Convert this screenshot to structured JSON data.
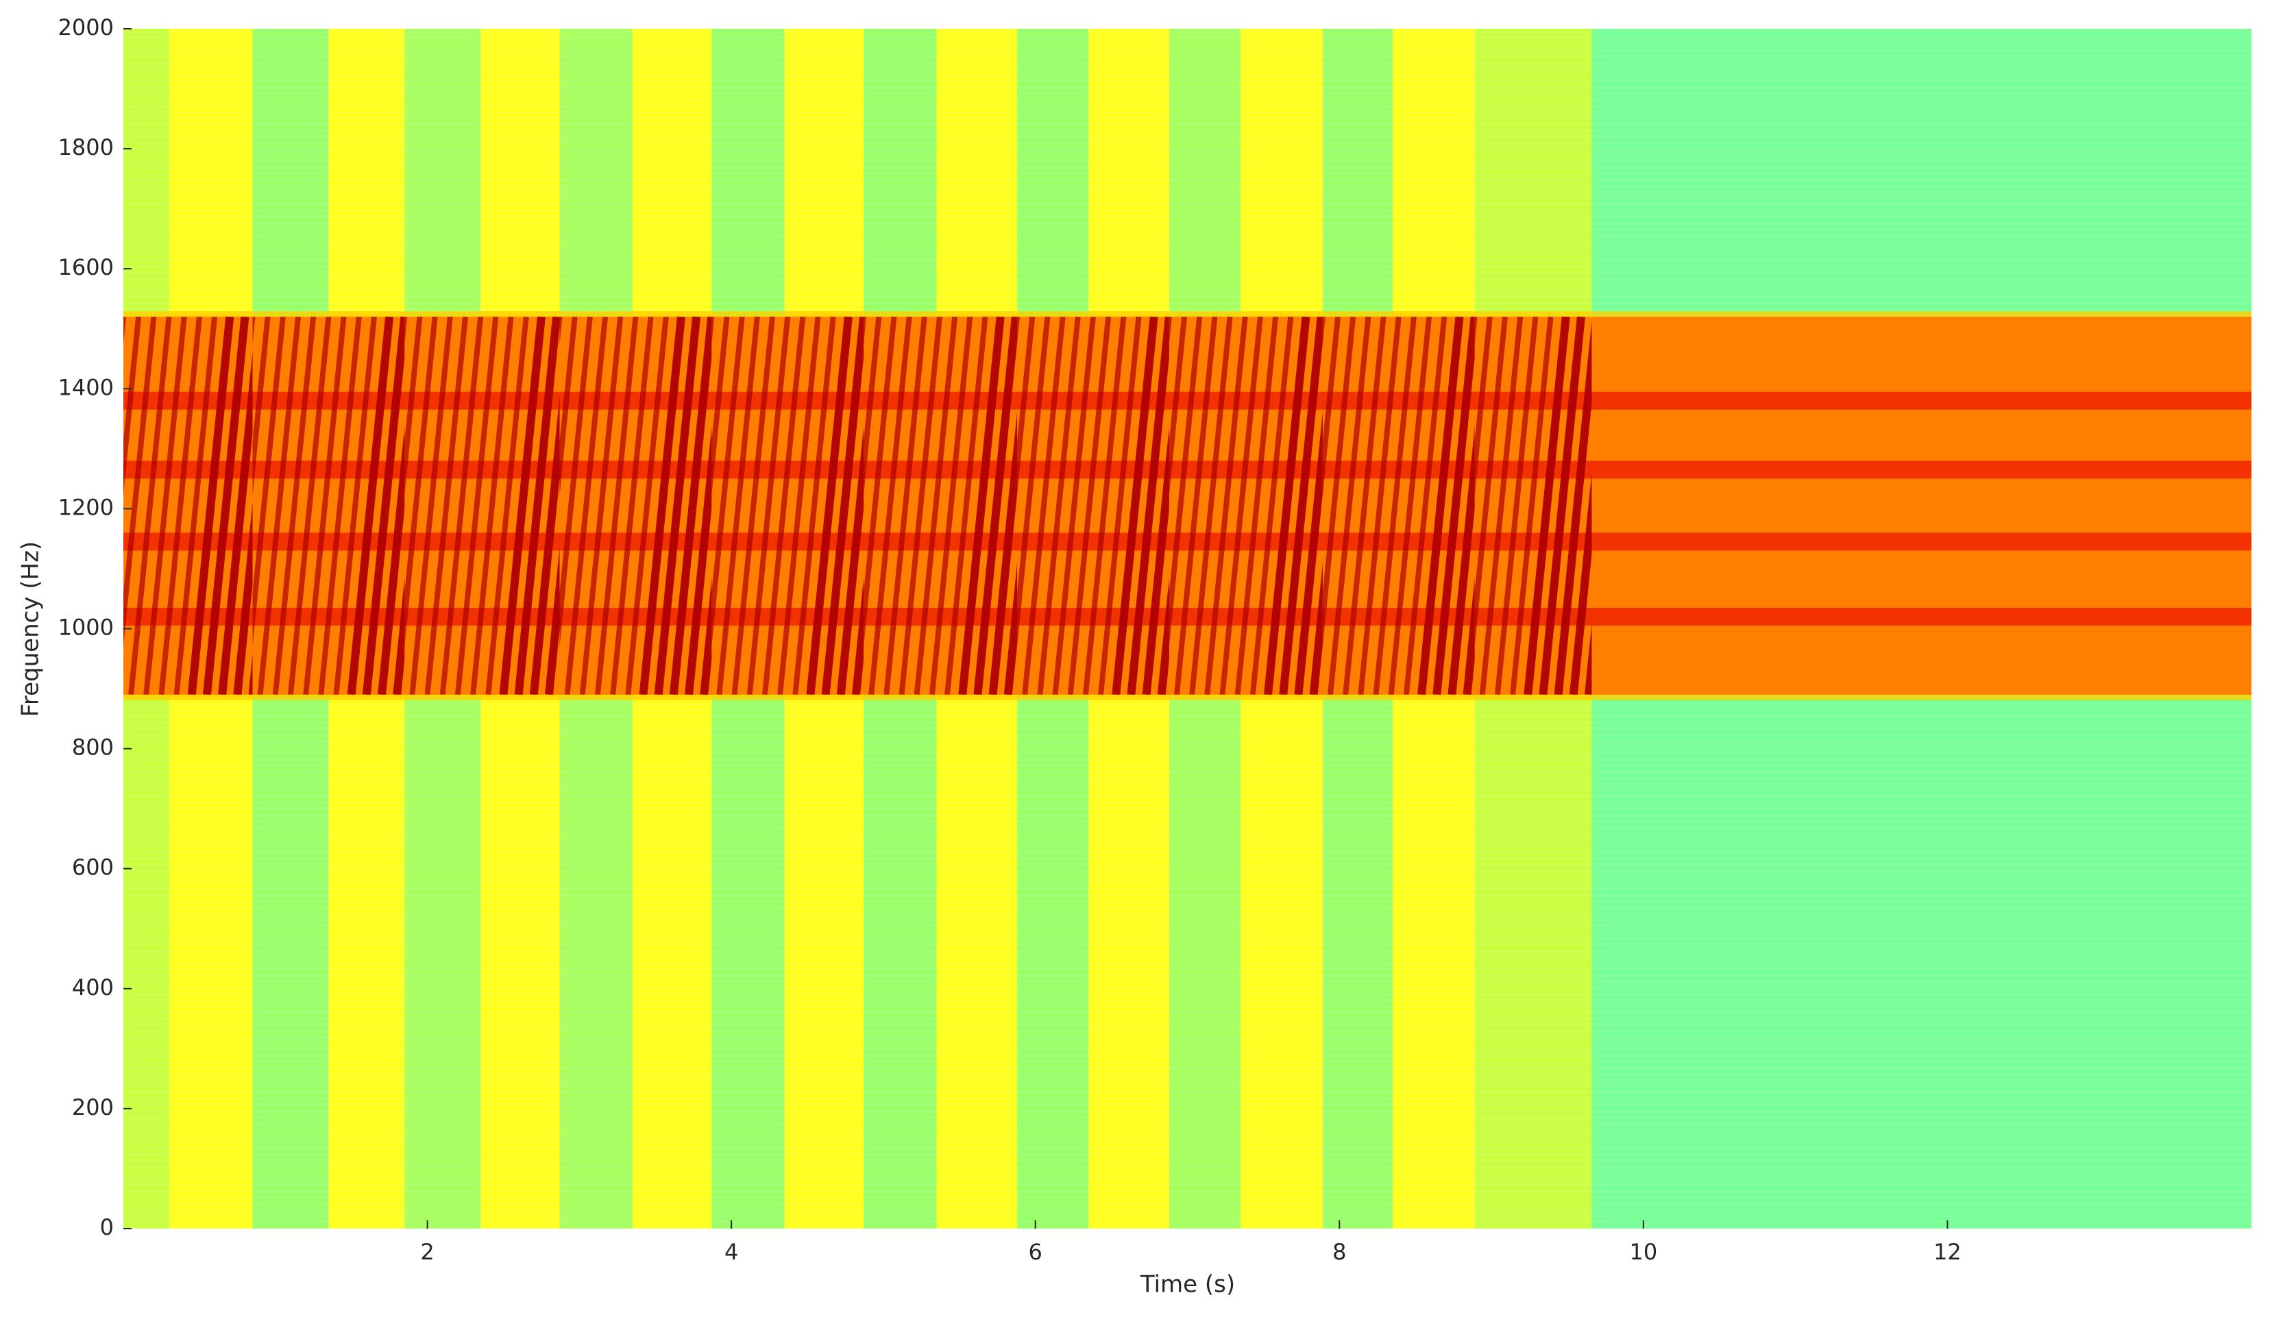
{
  "chart_data": {
    "type": "spectrogram",
    "xlabel": "Time (s)",
    "ylabel": "Frequency (Hz)",
    "xlim": [
      0,
      14
    ],
    "ylim": [
      0,
      2000
    ],
    "xticks": [
      2,
      4,
      6,
      8,
      10,
      12
    ],
    "yticks": [
      0,
      200,
      400,
      600,
      800,
      1000,
      1200,
      1400,
      1600,
      1800,
      2000
    ],
    "background": [
      {
        "x0": 0,
        "x1": 0.3,
        "color": "#c8ff40"
      },
      {
        "x0": 0.3,
        "x1": 0.85,
        "color": "#ffff20"
      },
      {
        "x0": 0.85,
        "x1": 1.35,
        "color": "#98ff68"
      },
      {
        "x0": 1.35,
        "x1": 1.85,
        "color": "#ffff20"
      },
      {
        "x0": 1.85,
        "x1": 2.35,
        "color": "#a8ff60"
      },
      {
        "x0": 2.35,
        "x1": 2.87,
        "color": "#ffff20"
      },
      {
        "x0": 2.87,
        "x1": 3.35,
        "color": "#a8ff60"
      },
      {
        "x0": 3.35,
        "x1": 3.87,
        "color": "#ffff20"
      },
      {
        "x0": 3.87,
        "x1": 4.35,
        "color": "#98ff68"
      },
      {
        "x0": 4.35,
        "x1": 4.87,
        "color": "#ffff20"
      },
      {
        "x0": 4.87,
        "x1": 5.35,
        "color": "#98ff68"
      },
      {
        "x0": 5.35,
        "x1": 5.88,
        "color": "#ffff20"
      },
      {
        "x0": 5.88,
        "x1": 6.35,
        "color": "#98ff68"
      },
      {
        "x0": 6.35,
        "x1": 6.88,
        "color": "#ffff20"
      },
      {
        "x0": 6.88,
        "x1": 7.35,
        "color": "#a8ff60"
      },
      {
        "x0": 7.35,
        "x1": 7.89,
        "color": "#ffff20"
      },
      {
        "x0": 7.89,
        "x1": 8.35,
        "color": "#98ff68"
      },
      {
        "x0": 8.35,
        "x1": 8.89,
        "color": "#ffff20"
      },
      {
        "x0": 8.89,
        "x1": 9.66,
        "color": "#c8ff40"
      },
      {
        "x0": 9.66,
        "x1": 14,
        "color": "#78ff98"
      }
    ],
    "band": {
      "y0": 890,
      "y1": 1520,
      "color": "#ff8000"
    },
    "tones": {
      "values": [
        1020,
        1145,
        1265,
        1380
      ],
      "color": "#ee1800"
    },
    "bursts": {
      "starts": [
        0,
        0.85,
        1.85,
        2.87,
        3.87,
        4.87,
        5.88,
        6.88,
        7.89,
        8.89
      ],
      "ends": [
        0.85,
        1.85,
        2.87,
        3.87,
        4.87,
        5.88,
        6.88,
        7.89,
        8.89,
        9.66
      ],
      "color": "#b00000"
    },
    "chirp": {
      "period": 0.1,
      "duration": 0.25
    }
  }
}
